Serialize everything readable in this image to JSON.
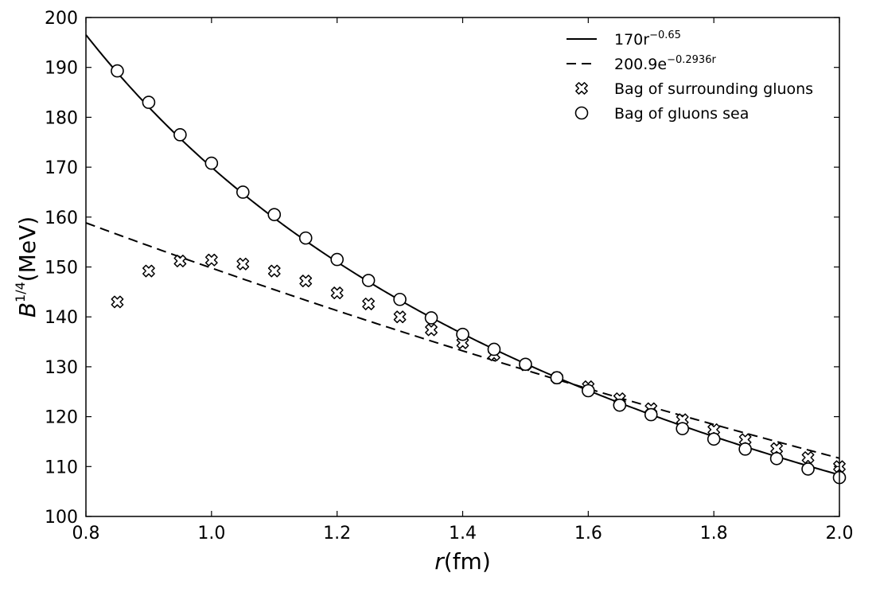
{
  "chart_data": {
    "type": "scatter",
    "xlabel": {
      "main": "r",
      "unit": "(fm)"
    },
    "ylabel": {
      "main": "B",
      "exponent": "1/4",
      "unit": "(MeV)"
    },
    "xlim": [
      0.8,
      2.0
    ],
    "ylim": [
      100,
      200
    ],
    "xticks": [
      "0.8",
      "1.0",
      "1.2",
      "1.4",
      "1.6",
      "1.8",
      "2.0"
    ],
    "yticks": [
      "100",
      "110",
      "120",
      "130",
      "140",
      "150",
      "160",
      "170",
      "180",
      "190",
      "200"
    ],
    "grid": false,
    "legend_position": "top-right",
    "series": [
      {
        "name": "170r^{-0.65}",
        "legend_base": "170r",
        "legend_sup": "−0.65",
        "kind": "curve",
        "style": "solid",
        "color": "#000000",
        "formula": {
          "type": "power",
          "a": 170,
          "b": -0.65
        },
        "x_range": [
          0.8,
          2.0
        ]
      },
      {
        "name": "200.9e^{-0.2936r}",
        "legend_base": "200.9e",
        "legend_sup": "−0.2936r",
        "kind": "curve",
        "style": "dashed",
        "color": "#000000",
        "formula": {
          "type": "exp",
          "a": 200.9,
          "b": -0.2936
        },
        "x_range": [
          0.8,
          2.0
        ]
      },
      {
        "name": "Bag of surrounding gluons",
        "kind": "markers",
        "marker": "x-filled",
        "x": [
          0.85,
          0.9,
          0.95,
          1.0,
          1.05,
          1.1,
          1.15,
          1.2,
          1.25,
          1.3,
          1.35,
          1.4,
          1.45,
          1.5,
          1.55,
          1.6,
          1.65,
          1.7,
          1.75,
          1.8,
          1.85,
          1.9,
          1.95,
          2.0
        ],
        "y": [
          143.0,
          149.2,
          151.2,
          151.4,
          150.6,
          149.2,
          147.2,
          144.8,
          142.6,
          140.0,
          137.4,
          134.8,
          132.4,
          130.4,
          127.8,
          126.0,
          123.6,
          121.6,
          119.4,
          117.4,
          115.4,
          113.6,
          111.8,
          110.0
        ]
      },
      {
        "name": "Bag of gluons sea",
        "kind": "markers",
        "marker": "circle",
        "x": [
          0.85,
          0.9,
          0.95,
          1.0,
          1.05,
          1.1,
          1.15,
          1.2,
          1.25,
          1.3,
          1.35,
          1.4,
          1.45,
          1.5,
          1.55,
          1.6,
          1.65,
          1.7,
          1.75,
          1.8,
          1.85,
          1.9,
          1.95,
          2.0
        ],
        "y": [
          189.3,
          183.0,
          176.5,
          170.8,
          165.0,
          160.5,
          155.8,
          151.5,
          147.3,
          143.5,
          139.8,
          136.5,
          133.5,
          130.5,
          127.8,
          125.2,
          122.3,
          120.4,
          117.6,
          115.5,
          113.5,
          111.6,
          109.5,
          107.8
        ]
      }
    ]
  }
}
